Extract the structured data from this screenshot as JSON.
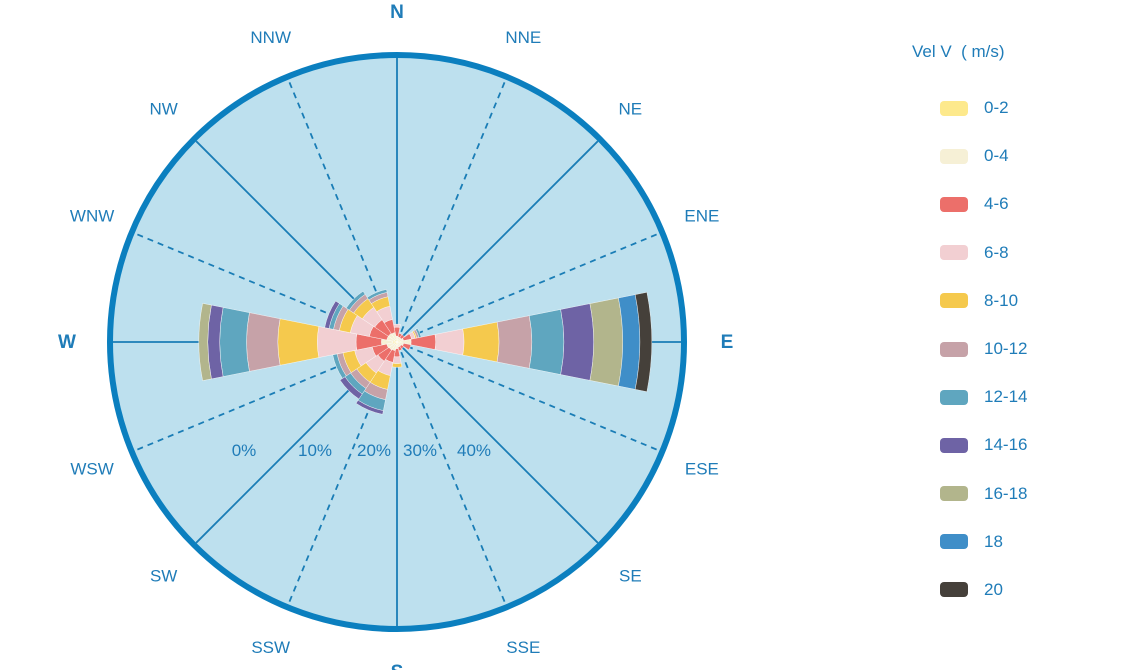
{
  "chart_data": {
    "type": "wind-rose",
    "directions": [
      "N",
      "NNE",
      "NE",
      "ENE",
      "E",
      "ESE",
      "SE",
      "SSE",
      "S",
      "SSW",
      "SW",
      "WSW",
      "W",
      "WNW",
      "NW",
      "NNW"
    ],
    "major_directions": [
      "N",
      "E",
      "S",
      "W"
    ],
    "radial_tick_labels": [
      "0%",
      "10%",
      "20%",
      "30%",
      "40%"
    ],
    "legend_title": "Vel V  ( m/s)",
    "speed_bins": [
      {
        "label": "0-2",
        "color": "#fde98c"
      },
      {
        "label": "0-4",
        "color": "#f6f0d6"
      },
      {
        "label": "4-6",
        "color": "#ec6f6a"
      },
      {
        "label": "6-8",
        "color": "#f2cfd2"
      },
      {
        "label": "8-10",
        "color": "#f5c94d"
      },
      {
        "label": "10-12",
        "color": "#c6a2a8"
      },
      {
        "label": "12-14",
        "color": "#5fa6bf"
      },
      {
        "label": "14-16",
        "color": "#6e63a5"
      },
      {
        "label": "16-18",
        "color": "#b2b58c"
      },
      {
        "label": "18",
        "color": "#3f8ec8"
      },
      {
        "label": "20",
        "color": "#45403a"
      }
    ],
    "series": [
      {
        "direction": "N",
        "values": [
          0.3,
          0.5,
          1.2,
          0.4,
          0,
          0,
          0,
          0,
          0,
          0,
          0
        ]
      },
      {
        "direction": "NNE",
        "values": [
          0.3,
          0.4,
          0.5,
          0,
          0,
          0,
          0,
          0,
          0,
          0,
          0
        ]
      },
      {
        "direction": "NE",
        "values": [
          0.3,
          0.4,
          0.5,
          0,
          0,
          0,
          0,
          0,
          0,
          0,
          0
        ]
      },
      {
        "direction": "ENE",
        "values": [
          0.3,
          0.6,
          1.1,
          0.5,
          0.2,
          0.3,
          0.3,
          0,
          0,
          0,
          0
        ]
      },
      {
        "direction": "E",
        "values": [
          0.5,
          1.4,
          3.3,
          3.8,
          4.7,
          4.4,
          4.3,
          4.0,
          3.9,
          2.3,
          1.6
        ]
      },
      {
        "direction": "ESE",
        "values": [
          0.3,
          0.6,
          1.0,
          0,
          0,
          0,
          0,
          0,
          0,
          0,
          0
        ]
      },
      {
        "direction": "SE",
        "values": [
          0.3,
          0.4,
          0.4,
          0,
          0,
          0,
          0,
          0,
          0,
          0,
          0
        ]
      },
      {
        "direction": "SSE",
        "values": [
          0.3,
          0.4,
          0.5,
          0,
          0,
          0,
          0,
          0,
          0,
          0,
          0
        ]
      },
      {
        "direction": "S",
        "values": [
          0.4,
          0.5,
          1.1,
          0.9,
          0.5,
          0,
          0,
          0,
          0,
          0,
          0
        ]
      },
      {
        "direction": "SSW",
        "values": [
          0.4,
          0.8,
          1.6,
          1.8,
          1.9,
          1.4,
          1.5,
          0.5,
          0,
          0,
          0
        ]
      },
      {
        "direction": "SW",
        "values": [
          0.4,
          0.9,
          1.8,
          1.9,
          1.5,
          1.0,
          0.9,
          0.8,
          0,
          0,
          0
        ]
      },
      {
        "direction": "WSW",
        "values": [
          0.4,
          1.0,
          2.0,
          2.4,
          1.6,
          0.8,
          0.6,
          0,
          0,
          0,
          0
        ]
      },
      {
        "direction": "W",
        "values": [
          0.6,
          1.5,
          3.4,
          5.2,
          5.3,
          4.2,
          3.6,
          1.6,
          1.2,
          0,
          0
        ]
      },
      {
        "direction": "WNW",
        "values": [
          0.4,
          1.0,
          2.4,
          2.6,
          1.5,
          0.8,
          0.6,
          0.6,
          0,
          0,
          0
        ]
      },
      {
        "direction": "NW",
        "values": [
          0.4,
          1.0,
          2.2,
          2.0,
          1.4,
          0.7,
          0.5,
          0,
          0,
          0,
          0
        ]
      },
      {
        "direction": "NNW",
        "values": [
          0.4,
          0.9,
          1.8,
          1.8,
          1.3,
          0.6,
          0.4,
          0,
          0,
          0,
          0
        ]
      }
    ],
    "colors": {
      "background": "#bde0ee",
      "rim": "#0b7fbf",
      "grid": "#1a7db6",
      "text": "#1f7cb8"
    }
  }
}
